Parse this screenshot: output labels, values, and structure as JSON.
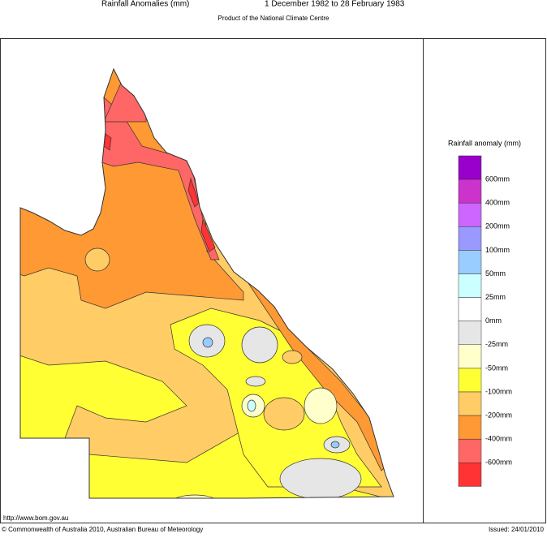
{
  "header": {
    "title": "Rainfall Anomalies (mm)",
    "period": "1 December 1982 to 28 February 1983",
    "subtitle": "Product of the National Climate Centre"
  },
  "legend": {
    "title": "Rainfall anomaly (mm)",
    "colors": [
      "#9900cc",
      "#cc33cc",
      "#cc66ff",
      "#9999ff",
      "#99ccff",
      "#ccffff",
      "#ffffff",
      "#e6e6e6",
      "#ffffcc",
      "#ffff33",
      "#ffcc66",
      "#ff9933",
      "#ff6666",
      "#ff3333"
    ],
    "labels": [
      "600mm",
      "400mm",
      "200mm",
      "100mm",
      "50mm",
      "25mm",
      "0mm",
      "-25mm",
      "-50mm",
      "-100mm",
      "-200mm",
      "-400mm",
      "-600mm"
    ]
  },
  "footer": {
    "url": "http://www.bom.gov.au",
    "copyright": "© Commonwealth of Australia 2010, Australian Bureau of Meteorology",
    "issued": "Issued: 24/01/2010"
  }
}
